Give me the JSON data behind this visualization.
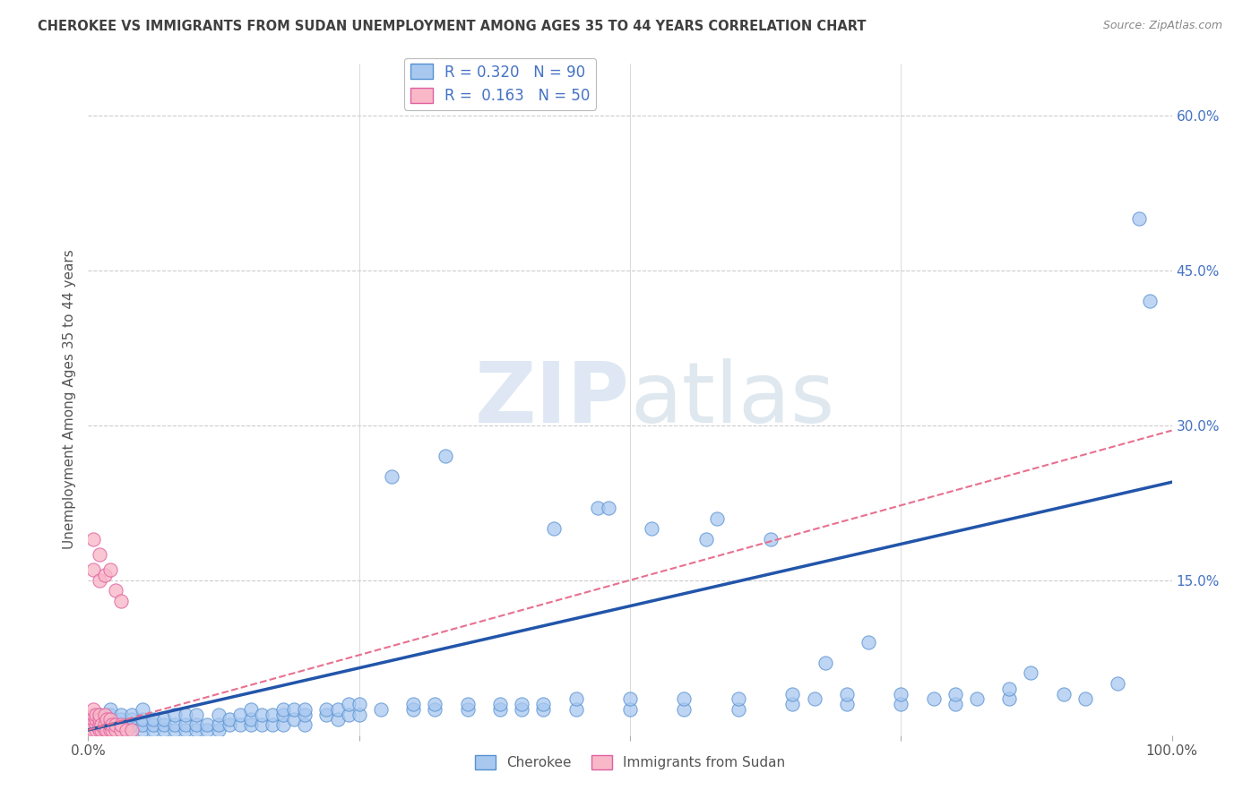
{
  "title": "CHEROKEE VS IMMIGRANTS FROM SUDAN UNEMPLOYMENT AMONG AGES 35 TO 44 YEARS CORRELATION CHART",
  "source": "Source: ZipAtlas.com",
  "xlabel_bottom_left": "0.0%",
  "xlabel_bottom_right": "100.0%",
  "ylabel": "Unemployment Among Ages 35 to 44 years",
  "y_tick_labels": [
    "15.0%",
    "30.0%",
    "45.0%",
    "60.0%"
  ],
  "y_tick_values": [
    0.15,
    0.3,
    0.45,
    0.6
  ],
  "x_min": 0.0,
  "x_max": 1.0,
  "y_min": 0.0,
  "y_max": 0.65,
  "cherokee_scatter": [
    [
      0.01,
      0.005
    ],
    [
      0.01,
      0.01
    ],
    [
      0.01,
      0.015
    ],
    [
      0.01,
      0.02
    ],
    [
      0.02,
      0.005
    ],
    [
      0.02,
      0.01
    ],
    [
      0.02,
      0.015
    ],
    [
      0.02,
      0.02
    ],
    [
      0.02,
      0.025
    ],
    [
      0.03,
      0.005
    ],
    [
      0.03,
      0.01
    ],
    [
      0.03,
      0.015
    ],
    [
      0.03,
      0.02
    ],
    [
      0.04,
      0.005
    ],
    [
      0.04,
      0.01
    ],
    [
      0.04,
      0.015
    ],
    [
      0.04,
      0.02
    ],
    [
      0.05,
      0.005
    ],
    [
      0.05,
      0.01
    ],
    [
      0.05,
      0.015
    ],
    [
      0.05,
      0.025
    ],
    [
      0.06,
      0.005
    ],
    [
      0.06,
      0.01
    ],
    [
      0.06,
      0.015
    ],
    [
      0.07,
      0.005
    ],
    [
      0.07,
      0.01
    ],
    [
      0.07,
      0.015
    ],
    [
      0.08,
      0.005
    ],
    [
      0.08,
      0.01
    ],
    [
      0.08,
      0.02
    ],
    [
      0.09,
      0.005
    ],
    [
      0.09,
      0.01
    ],
    [
      0.09,
      0.02
    ],
    [
      0.1,
      0.005
    ],
    [
      0.1,
      0.01
    ],
    [
      0.1,
      0.02
    ],
    [
      0.11,
      0.005
    ],
    [
      0.11,
      0.01
    ],
    [
      0.12,
      0.005
    ],
    [
      0.12,
      0.01
    ],
    [
      0.12,
      0.02
    ],
    [
      0.13,
      0.01
    ],
    [
      0.13,
      0.015
    ],
    [
      0.14,
      0.01
    ],
    [
      0.14,
      0.02
    ],
    [
      0.15,
      0.01
    ],
    [
      0.15,
      0.015
    ],
    [
      0.15,
      0.025
    ],
    [
      0.16,
      0.01
    ],
    [
      0.16,
      0.02
    ],
    [
      0.17,
      0.01
    ],
    [
      0.17,
      0.02
    ],
    [
      0.18,
      0.01
    ],
    [
      0.18,
      0.02
    ],
    [
      0.18,
      0.025
    ],
    [
      0.19,
      0.015
    ],
    [
      0.19,
      0.025
    ],
    [
      0.2,
      0.01
    ],
    [
      0.2,
      0.02
    ],
    [
      0.2,
      0.025
    ],
    [
      0.22,
      0.02
    ],
    [
      0.22,
      0.025
    ],
    [
      0.23,
      0.015
    ],
    [
      0.23,
      0.025
    ],
    [
      0.24,
      0.02
    ],
    [
      0.24,
      0.03
    ],
    [
      0.25,
      0.02
    ],
    [
      0.25,
      0.03
    ],
    [
      0.27,
      0.025
    ],
    [
      0.28,
      0.25
    ],
    [
      0.3,
      0.025
    ],
    [
      0.3,
      0.03
    ],
    [
      0.32,
      0.025
    ],
    [
      0.32,
      0.03
    ],
    [
      0.33,
      0.27
    ],
    [
      0.35,
      0.025
    ],
    [
      0.35,
      0.03
    ],
    [
      0.38,
      0.025
    ],
    [
      0.38,
      0.03
    ],
    [
      0.4,
      0.025
    ],
    [
      0.4,
      0.03
    ],
    [
      0.42,
      0.025
    ],
    [
      0.42,
      0.03
    ],
    [
      0.43,
      0.2
    ],
    [
      0.45,
      0.025
    ],
    [
      0.45,
      0.035
    ],
    [
      0.47,
      0.22
    ],
    [
      0.48,
      0.22
    ],
    [
      0.5,
      0.025
    ],
    [
      0.5,
      0.035
    ],
    [
      0.52,
      0.2
    ],
    [
      0.55,
      0.025
    ],
    [
      0.55,
      0.035
    ],
    [
      0.57,
      0.19
    ],
    [
      0.58,
      0.21
    ],
    [
      0.6,
      0.025
    ],
    [
      0.6,
      0.035
    ],
    [
      0.63,
      0.19
    ],
    [
      0.65,
      0.03
    ],
    [
      0.65,
      0.04
    ],
    [
      0.67,
      0.035
    ],
    [
      0.68,
      0.07
    ],
    [
      0.7,
      0.03
    ],
    [
      0.7,
      0.04
    ],
    [
      0.72,
      0.09
    ],
    [
      0.75,
      0.03
    ],
    [
      0.75,
      0.04
    ],
    [
      0.78,
      0.035
    ],
    [
      0.8,
      0.03
    ],
    [
      0.8,
      0.04
    ],
    [
      0.82,
      0.035
    ],
    [
      0.85,
      0.035
    ],
    [
      0.85,
      0.045
    ],
    [
      0.87,
      0.06
    ],
    [
      0.9,
      0.04
    ],
    [
      0.92,
      0.035
    ],
    [
      0.95,
      0.05
    ],
    [
      0.97,
      0.5
    ],
    [
      0.98,
      0.42
    ]
  ],
  "sudan_scatter": [
    [
      0.005,
      0.005
    ],
    [
      0.005,
      0.01
    ],
    [
      0.005,
      0.015
    ],
    [
      0.005,
      0.02
    ],
    [
      0.005,
      0.025
    ],
    [
      0.007,
      0.005
    ],
    [
      0.007,
      0.01
    ],
    [
      0.007,
      0.015
    ],
    [
      0.007,
      0.02
    ],
    [
      0.01,
      0.005
    ],
    [
      0.01,
      0.01
    ],
    [
      0.01,
      0.015
    ],
    [
      0.01,
      0.02
    ],
    [
      0.012,
      0.005
    ],
    [
      0.012,
      0.01
    ],
    [
      0.015,
      0.005
    ],
    [
      0.015,
      0.01
    ],
    [
      0.015,
      0.02
    ],
    [
      0.017,
      0.005
    ],
    [
      0.017,
      0.015
    ],
    [
      0.02,
      0.005
    ],
    [
      0.02,
      0.01
    ],
    [
      0.02,
      0.015
    ],
    [
      0.022,
      0.005
    ],
    [
      0.022,
      0.01
    ],
    [
      0.025,
      0.005
    ],
    [
      0.025,
      0.01
    ],
    [
      0.03,
      0.005
    ],
    [
      0.03,
      0.01
    ],
    [
      0.035,
      0.005
    ],
    [
      0.04,
      0.005
    ],
    [
      0.005,
      0.16
    ],
    [
      0.005,
      0.19
    ],
    [
      0.01,
      0.15
    ],
    [
      0.01,
      0.175
    ],
    [
      0.015,
      0.155
    ],
    [
      0.02,
      0.16
    ],
    [
      0.025,
      0.14
    ],
    [
      0.03,
      0.13
    ]
  ],
  "cherokee_line": {
    "x0": 0.0,
    "y0": 0.005,
    "x1": 1.0,
    "y1": 0.245
  },
  "sudan_line": {
    "x0": 0.0,
    "y0": 0.005,
    "x1": 1.0,
    "y1": 0.295
  },
  "watermark_zip": "ZIP",
  "watermark_atlas": "atlas",
  "cherokee_color": "#a8c8f0",
  "cherokee_edge": "#5590d0",
  "sudan_color": "#f8b8c8",
  "sudan_edge": "#e060a0",
  "cherokee_line_color": "#2255aa",
  "sudan_line_color": "#e87090",
  "grid_color": "#cccccc",
  "bg_color": "#ffffff",
  "title_color": "#404040",
  "source_color": "#888888",
  "label_color": "#4472c4",
  "legend_r1": "R = 0.320   N = 90",
  "legend_r2": "R =  0.163   N = 50",
  "bottom_legend_cherokee": "Cherokee",
  "bottom_legend_sudan": "Immigrants from Sudan"
}
